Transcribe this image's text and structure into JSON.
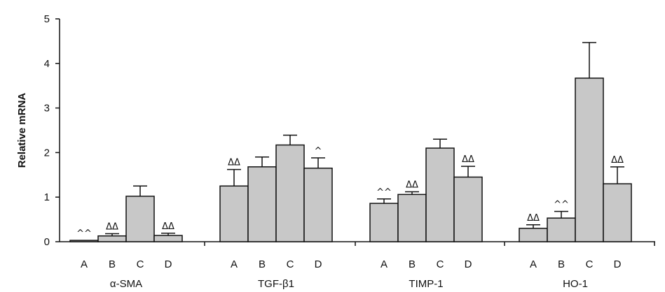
{
  "chart_data": {
    "type": "bar",
    "title": "",
    "xlabel": "",
    "ylabel": "Relative mRNA",
    "ylim": [
      0,
      5
    ],
    "yticks": [
      "0",
      "1",
      "2",
      "3",
      "4",
      "5"
    ],
    "grid": false,
    "legend": "none",
    "bar_color": "#c8c8c8",
    "groups": [
      {
        "name": "α-SMA",
        "bars": [
          {
            "category": "A",
            "value": 0.03,
            "error": 0.0,
            "marker": "^^"
          },
          {
            "category": "B",
            "value": 0.13,
            "error": 0.05,
            "marker": "ΔΔ"
          },
          {
            "category": "C",
            "value": 1.02,
            "error": 0.23,
            "marker": ""
          },
          {
            "category": "D",
            "value": 0.14,
            "error": 0.05,
            "marker": "ΔΔ"
          }
        ]
      },
      {
        "name": "TGF-β1",
        "bars": [
          {
            "category": "A",
            "value": 1.25,
            "error": 0.37,
            "marker": "ΔΔ"
          },
          {
            "category": "B",
            "value": 1.68,
            "error": 0.22,
            "marker": ""
          },
          {
            "category": "C",
            "value": 2.17,
            "error": 0.22,
            "marker": ""
          },
          {
            "category": "D",
            "value": 1.65,
            "error": 0.23,
            "marker": "^"
          }
        ]
      },
      {
        "name": "TIMP-1",
        "bars": [
          {
            "category": "A",
            "value": 0.86,
            "error": 0.1,
            "marker": "^^"
          },
          {
            "category": "B",
            "value": 1.06,
            "error": 0.06,
            "marker": "ΔΔ"
          },
          {
            "category": "C",
            "value": 2.1,
            "error": 0.2,
            "marker": ""
          },
          {
            "category": "D",
            "value": 1.45,
            "error": 0.24,
            "marker": "ΔΔ"
          }
        ]
      },
      {
        "name": "HO-1",
        "bars": [
          {
            "category": "A",
            "value": 0.3,
            "error": 0.08,
            "marker": "ΔΔ"
          },
          {
            "category": "B",
            "value": 0.53,
            "error": 0.15,
            "marker": "^^"
          },
          {
            "category": "C",
            "value": 3.67,
            "error": 0.8,
            "marker": ""
          },
          {
            "category": "D",
            "value": 1.3,
            "error": 0.38,
            "marker": "ΔΔ"
          }
        ]
      }
    ]
  }
}
